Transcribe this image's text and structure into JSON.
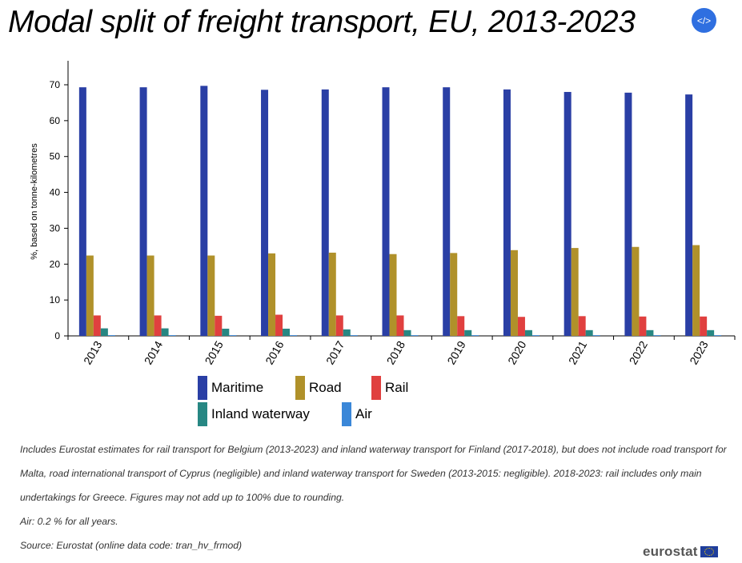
{
  "header": {
    "title": "Modal split of freight transport, EU, 2013-2023",
    "embed_label": "</>"
  },
  "chart_data": {
    "type": "bar",
    "title": "Modal split of freight transport, EU, 2013-2023",
    "xlabel": "",
    "ylabel": "%, based on tonne-kilometres",
    "ylim": [
      0,
      75
    ],
    "yticks": [
      0,
      10,
      20,
      30,
      40,
      50,
      60,
      70
    ],
    "grid": false,
    "legend_position": "bottom",
    "categories": [
      "2013",
      "2014",
      "2015",
      "2016",
      "2017",
      "2018",
      "2019",
      "2020",
      "2021",
      "2022",
      "2023"
    ],
    "series": [
      {
        "name": "Maritime",
        "color": "#2a3fa5",
        "values": [
          69.3,
          69.3,
          69.7,
          68.6,
          68.7,
          69.3,
          69.3,
          68.7,
          68.0,
          67.8,
          67.3
        ]
      },
      {
        "name": "Road",
        "color": "#b0912a",
        "values": [
          22.4,
          22.4,
          22.4,
          23.0,
          23.2,
          22.8,
          23.1,
          23.9,
          24.5,
          24.8,
          25.3
        ]
      },
      {
        "name": "Rail",
        "color": "#e0403f",
        "values": [
          5.7,
          5.7,
          5.6,
          5.9,
          5.7,
          5.7,
          5.5,
          5.3,
          5.5,
          5.4,
          5.4
        ]
      },
      {
        "name": "Inland waterway",
        "color": "#278783",
        "values": [
          2.1,
          2.1,
          2.0,
          2.0,
          1.8,
          1.6,
          1.6,
          1.6,
          1.6,
          1.6,
          1.6
        ]
      },
      {
        "name": "Air",
        "color": "#3a87d8",
        "values": [
          0.2,
          0.2,
          0.2,
          0.2,
          0.2,
          0.2,
          0.2,
          0.2,
          0.2,
          0.2,
          0.2
        ]
      }
    ]
  },
  "notes": {
    "line1": "Includes Eurostat estimates for rail transport for Belgium (2013-2023) and inland waterway transport for Finland (2017-2018), but does not include road transport for Malta, road international transport of Cyprus (negligible) and inland waterway transport for Sweden (2013-2015: negligible). 2018-2023: rail includes only main undertakings for Greece. Figures may not add up to 100% due to rounding.",
    "line2": "Air: 0.2 % for all years.",
    "line3": "Source: Eurostat (online data code: tran_hv_frmod)"
  },
  "footer": {
    "logo_text": "eurostat",
    "logo_icon": "eu-flag-icon"
  }
}
